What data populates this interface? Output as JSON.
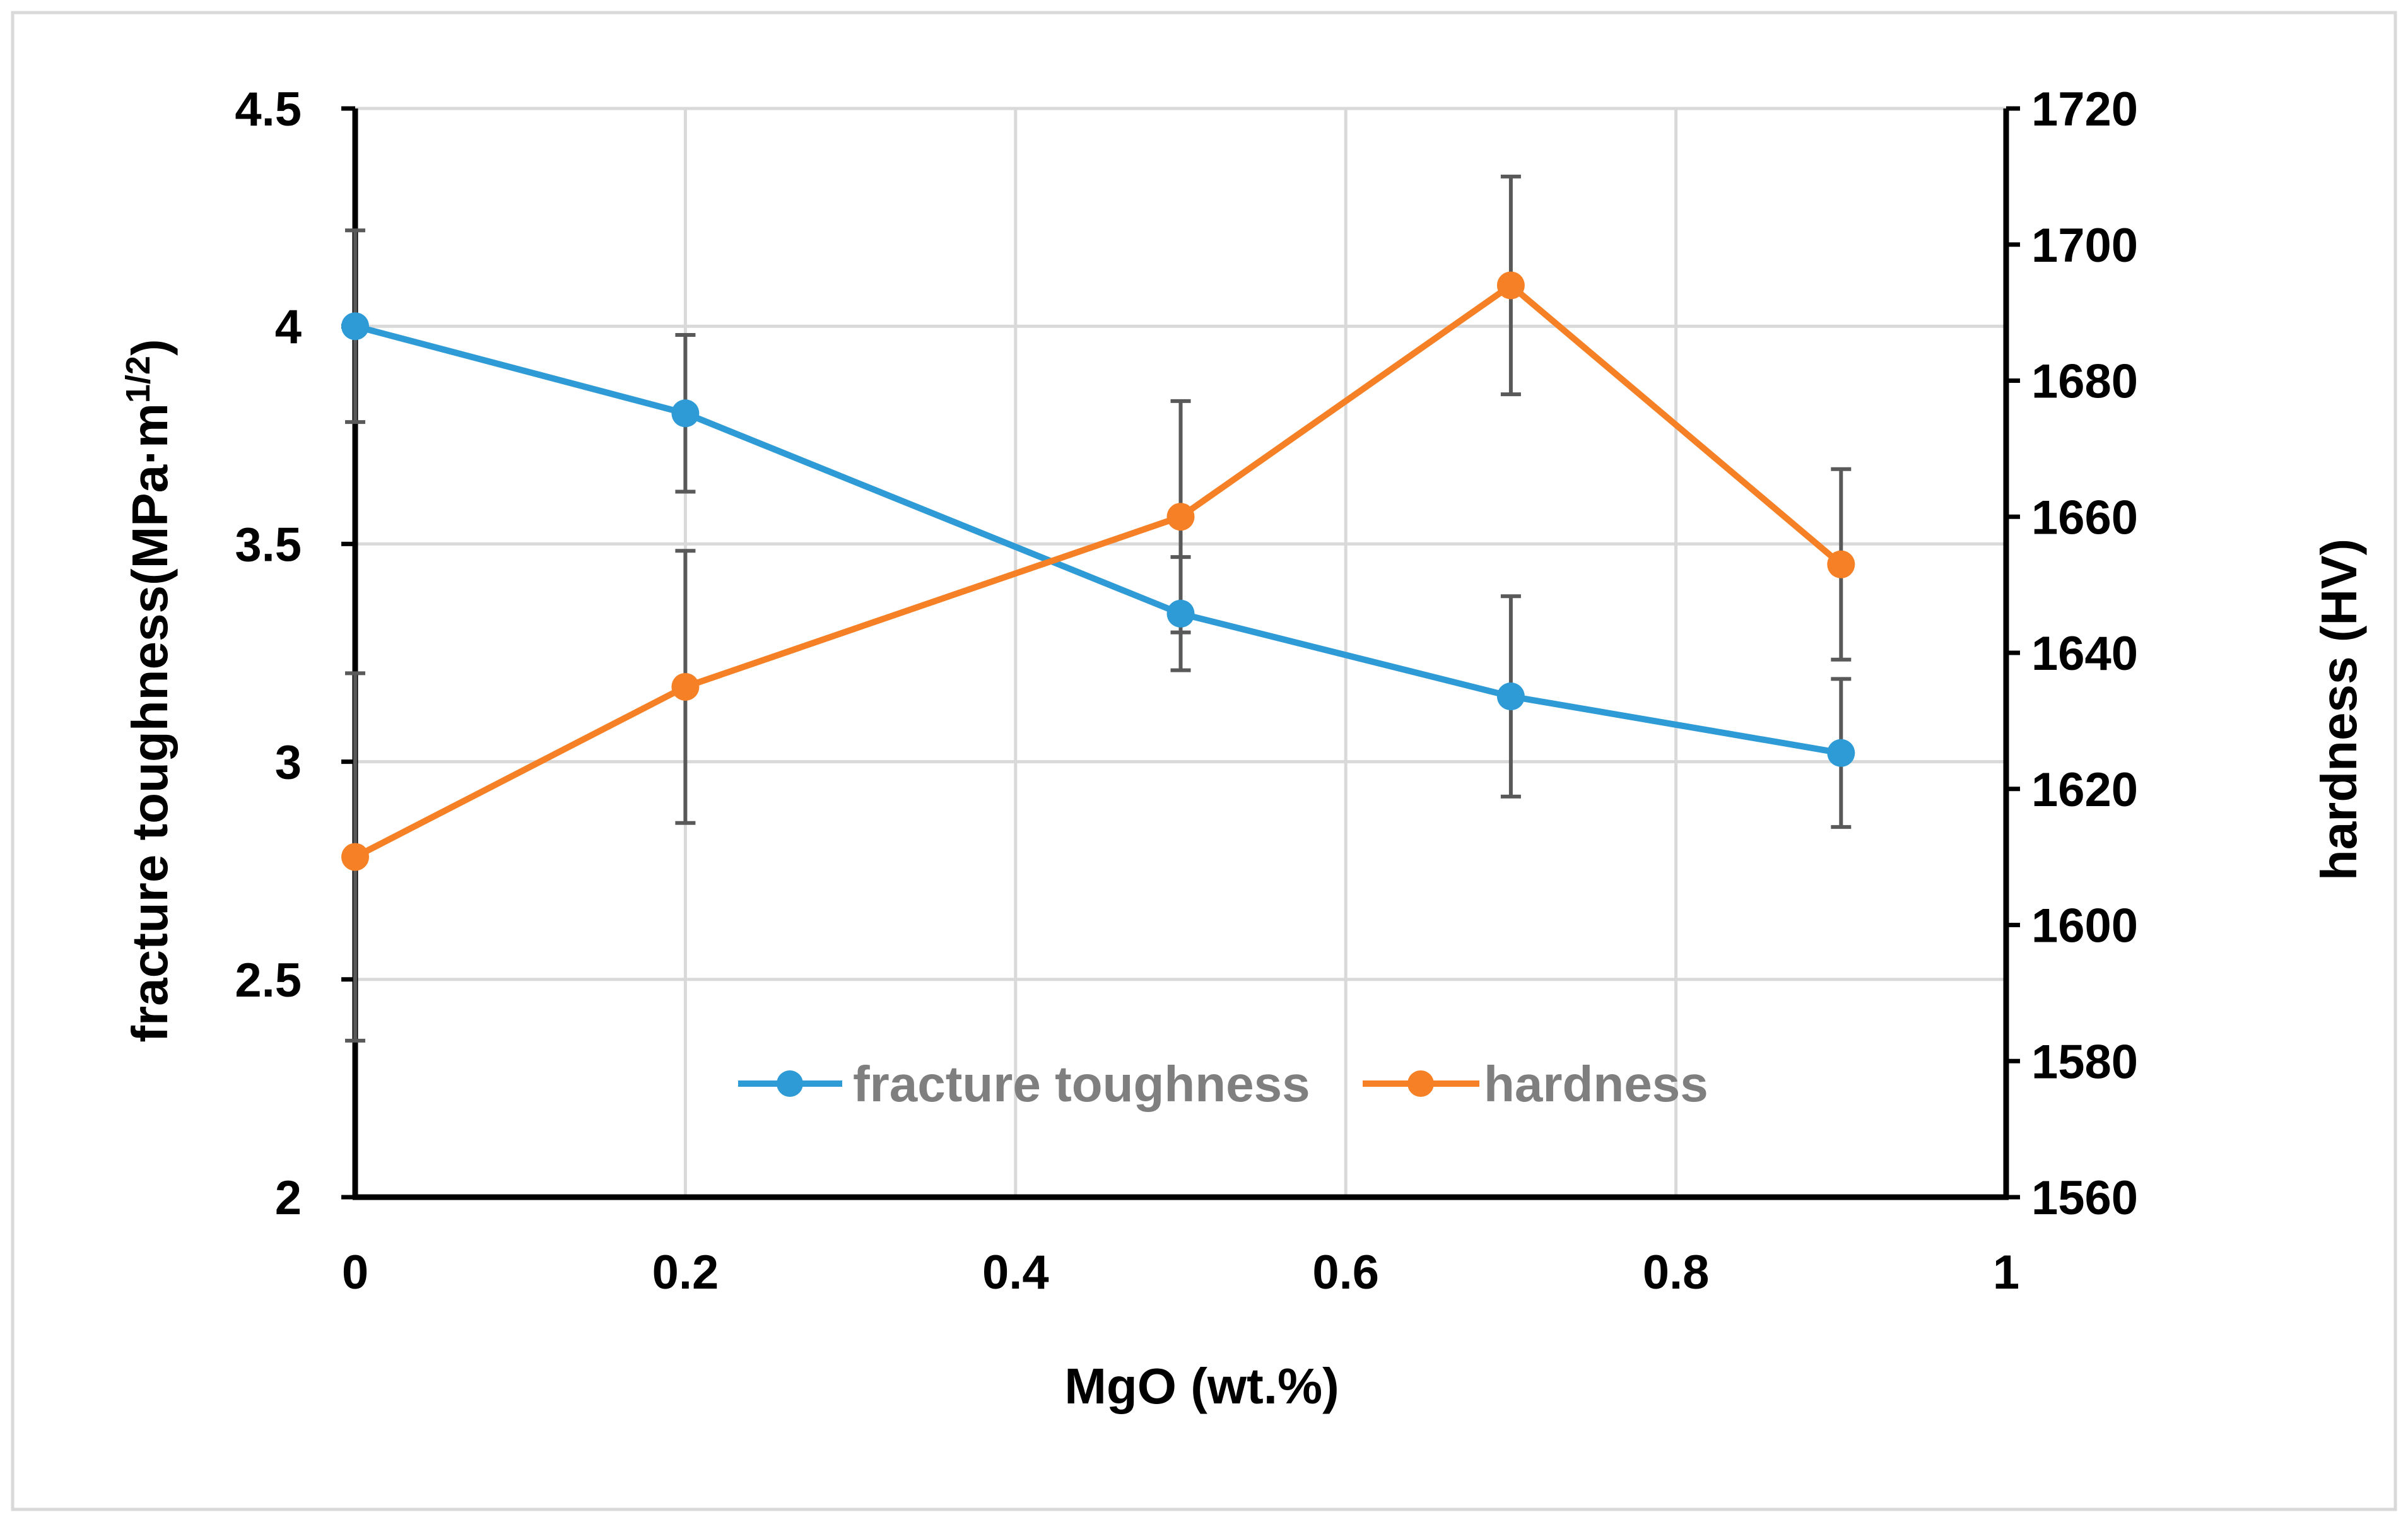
{
  "chart_data": {
    "type": "line",
    "title": "",
    "xlabel": "MgO (wt.%)",
    "ylabel_left": "fracture toughness(MPa·m",
    "ylabel_left_sup": "1/2",
    "ylabel_left_close": ")",
    "ylabel_right": "hardness (HV)",
    "xlim": [
      0,
      1
    ],
    "ylim_left": [
      2,
      4.5
    ],
    "ylim_right": [
      1560,
      1720
    ],
    "x_ticks": [
      0,
      0.2,
      0.4,
      0.6,
      0.8,
      1
    ],
    "x_tick_labels": [
      "0",
      "0.2",
      "0.4",
      "0.6",
      "0.8",
      "1"
    ],
    "y_left_ticks": [
      2,
      2.5,
      3,
      3.5,
      4,
      4.5
    ],
    "y_left_tick_labels": [
      "2",
      "2.5",
      "3",
      "3.5",
      "4",
      "4.5"
    ],
    "y_right_ticks": [
      1560,
      1580,
      1600,
      1620,
      1640,
      1660,
      1680,
      1700,
      1720
    ],
    "y_right_tick_labels": [
      "1560",
      "1580",
      "1600",
      "1620",
      "1640",
      "1660",
      "1680",
      "1700",
      "1720"
    ],
    "grid": true,
    "legend_position": "bottom-center",
    "series": [
      {
        "name": "fracture toughness",
        "axis": "left",
        "color": "#2e9bd6",
        "x": [
          0,
          0.2,
          0.5,
          0.7,
          0.9
        ],
        "y": [
          4.0,
          3.8,
          3.34,
          3.15,
          3.02
        ],
        "err": [
          0.22,
          0.18,
          0.13,
          0.23,
          0.17
        ]
      },
      {
        "name": "hardness",
        "axis": "right",
        "color": "#f58025",
        "x": [
          0,
          0.2,
          0.5,
          0.7,
          0.9
        ],
        "y": [
          1610,
          1635,
          1660,
          1694,
          1653
        ],
        "err": [
          27,
          20,
          17,
          16,
          14
        ]
      }
    ]
  }
}
